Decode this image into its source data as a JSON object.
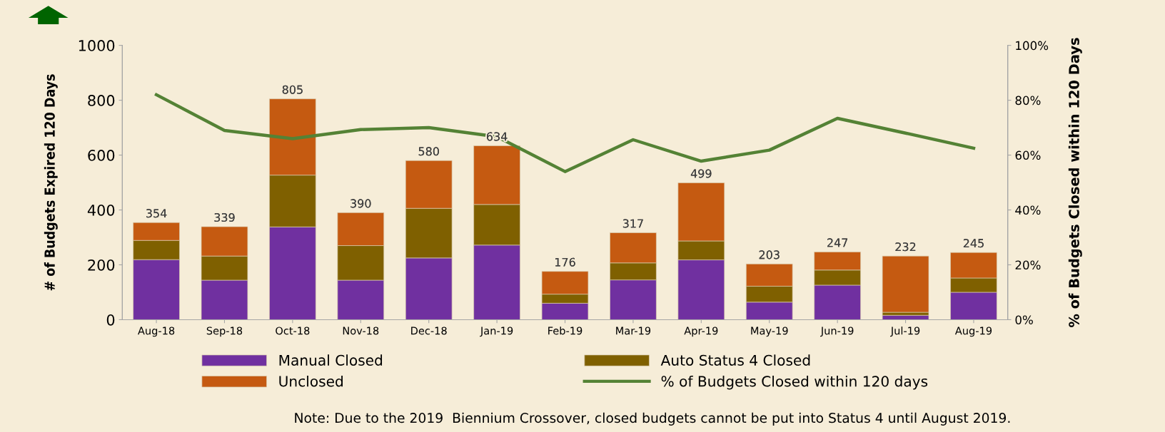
{
  "chart_data": {
    "type": "bar",
    "stacked": true,
    "categories": [
      "Aug-18",
      "Sep-18",
      "Oct-18",
      "Nov-18",
      "Dec-18",
      "Jan-19",
      "Feb-19",
      "Mar-19",
      "Apr-19",
      "May-19",
      "Jun-19",
      "Jul-19",
      "Aug-19"
    ],
    "series": [
      {
        "name": "Manual Closed",
        "color": "#7030a0",
        "values": [
          219,
          144,
          338,
          144,
          225,
          272,
          60,
          145,
          218,
          64,
          126,
          16,
          100
        ]
      },
      {
        "name": "Auto Status 4 Closed",
        "color": "#7f6000",
        "values": [
          70,
          88,
          189,
          126,
          181,
          148,
          33,
          62,
          69,
          58,
          55,
          11,
          52
        ]
      },
      {
        "name": "Unclosed",
        "color": "#c55a11",
        "values": [
          65,
          107,
          278,
          120,
          174,
          214,
          83,
          110,
          212,
          81,
          66,
          205,
          93
        ]
      },
      {
        "name": "% of Budgets Closed within 120 days",
        "type": "line",
        "axis": "y2",
        "color": "#548235",
        "marker": "none",
        "values": [
          82,
          69,
          66,
          69.3,
          70,
          66.7,
          54,
          65.6,
          57.8,
          61.8,
          73.4,
          68,
          62.5
        ]
      }
    ],
    "totals": [
      "354",
      "339",
      "805",
      "390",
      "580",
      "634",
      "176",
      "317",
      "499",
      "203",
      "247",
      "232",
      "245"
    ],
    "ylabel": "# of Budgets Expired 120 Days",
    "y2label": "% of Budgets Closed within 120 Days",
    "ylim": [
      0,
      1000
    ],
    "yticks": [
      0,
      200,
      400,
      600,
      800,
      1000
    ],
    "y2lim": [
      0,
      100
    ],
    "y2ticks": [
      {
        "value": 0,
        "label": "0%"
      },
      {
        "value": 20,
        "label": "20%"
      },
      {
        "value": 40,
        "label": "40%"
      },
      {
        "value": 60,
        "label": "60%"
      },
      {
        "value": 80,
        "label": "80%"
      },
      {
        "value": 100,
        "label": "100%"
      }
    ],
    "grid": false,
    "legend": "bottom",
    "annotations": [
      "Note: Due to the 2019  Biennium Crossover, closed budgets cannot be put into Status 4 until August 2019."
    ]
  }
}
